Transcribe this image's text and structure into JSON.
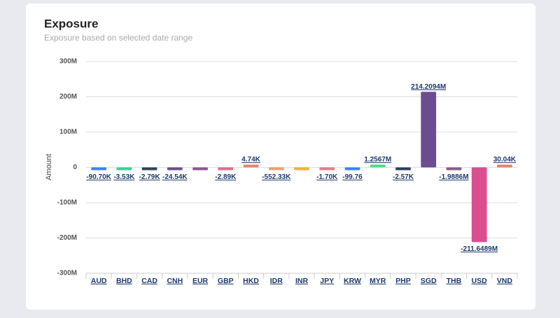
{
  "chart_data": {
    "type": "bar",
    "title": "Exposure",
    "subtitle": "Exposure based on selected date range",
    "y_label": "Amount",
    "categories": [
      "AUD",
      "BHD",
      "CAD",
      "CNH",
      "EUR",
      "GBP",
      "HKD",
      "IDR",
      "INR",
      "JPY",
      "KRW",
      "MYR",
      "PHP",
      "SGD",
      "THB",
      "USD",
      "VND"
    ],
    "values": [
      -90700,
      -3530,
      -2790,
      -24540,
      -1000,
      -2890,
      4740,
      -552330,
      -1000,
      -1700,
      -99.76,
      1256700,
      -2570,
      214209400,
      -1988600,
      -211648900,
      30040
    ],
    "value_labels": [
      "-90.70K",
      "-3.53K",
      "-2.79K",
      "-24.54K",
      null,
      "-2.89K",
      "4.74K",
      "-552.33K",
      null,
      "-1.70K",
      "-99.76",
      "1.2567M",
      "-2.57K",
      "214.2094M",
      "-1.9886M",
      "-211.6489M",
      "30.04K"
    ],
    "colors": [
      "#3b82f6",
      "#34d399",
      "#334155",
      "#6b4f8a",
      "#8a5a8f",
      "#e06c8c",
      "#e8836f",
      "#f0a070",
      "#f0b040",
      "#e87a8a",
      "#3b82f6",
      "#4ade80",
      "#2f3e5c",
      "#6b4c93",
      "#8b5a8b",
      "#d94f8f",
      "#e8806f"
    ],
    "ylim": [
      -300000000,
      300000000
    ],
    "yticks": [
      {
        "value": -300000000,
        "label": "-300M"
      },
      {
        "value": -200000000,
        "label": "-200M"
      },
      {
        "value": -100000000,
        "label": "-100M"
      },
      0,
      {
        "value": 100000000,
        "label": "100M"
      },
      {
        "value": 200000000,
        "label": "200M"
      },
      {
        "value": 300000000,
        "label": "300M"
      }
    ],
    "grid": true
  }
}
